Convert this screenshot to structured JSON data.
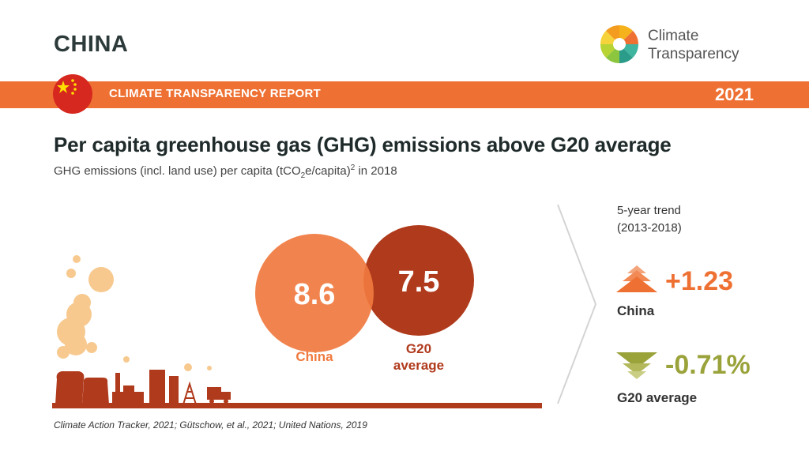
{
  "header": {
    "country": "CHINA",
    "brand_line1": "Climate",
    "brand_line2": "Transparency",
    "report_label": "CLIMATE TRANSPARENCY REPORT",
    "year": "2021"
  },
  "headline": "Per capita greenhouse gas (GHG) emissions above G20 average",
  "subtitle": {
    "part1": "GHG emissions (incl. land use) per capita (tCO",
    "sub": "2",
    "part2": "e/capita)",
    "sup": "2",
    "part3": " in 2018"
  },
  "chart_data": {
    "type": "bubble",
    "series": [
      {
        "name": "China",
        "value": 8.6,
        "label": "8.6",
        "color": "#f07a3f"
      },
      {
        "name": "G20 average",
        "value": 7.5,
        "label": "7.5",
        "color": "#b03a1c"
      }
    ],
    "category_labels": [
      "China",
      "G20\naverage"
    ]
  },
  "trend": {
    "title_line1": "5-year trend",
    "title_line2": "(2013-2018)",
    "china": {
      "value": "+1.23",
      "label": "China",
      "direction": "up",
      "color": "#ee7133"
    },
    "g20": {
      "value": "-0.71%",
      "label": "G20 average",
      "direction": "down",
      "color": "#9aa23a"
    }
  },
  "colors": {
    "band": "#ee7133",
    "china": "#f07a3f",
    "g20": "#b03a1c",
    "g20_trend": "#9aa23a"
  },
  "source": "Climate Action Tracker, 2021; Gütschow, et al., 2021; United Nations, 2019"
}
